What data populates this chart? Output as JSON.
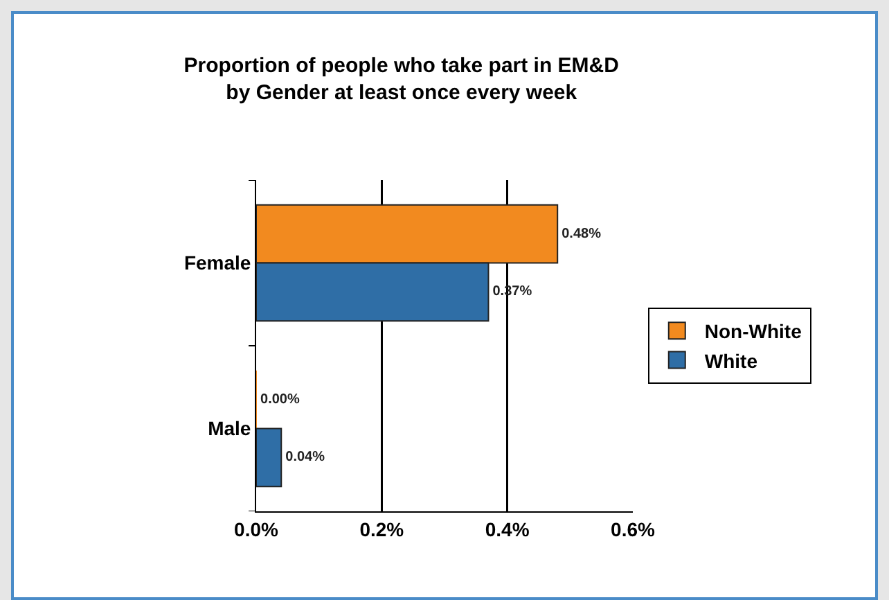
{
  "chart_data": {
    "type": "bar",
    "orientation": "horizontal",
    "title": "Proportion of people who take part in EM&D\nby Gender at least once every week",
    "categories": [
      "Female",
      "Male"
    ],
    "series": [
      {
        "name": "Non-White",
        "color": "#f28a1f",
        "values": [
          0.48,
          0.0
        ],
        "value_labels": [
          "0.48%",
          "0.00%"
        ]
      },
      {
        "name": "White",
        "color": "#2f6ea6",
        "values": [
          0.37,
          0.04
        ],
        "value_labels": [
          "0.37%",
          "0.04%"
        ]
      }
    ],
    "xlim": [
      0,
      0.6
    ],
    "xticks": [
      {
        "value": 0,
        "label": "0.0%"
      },
      {
        "value": 0.2,
        "label": "0.2%"
      },
      {
        "value": 0.4,
        "label": "0.4%"
      },
      {
        "value": 0.6,
        "label": "0.6%"
      }
    ],
    "grid": "x",
    "legend": "right"
  }
}
